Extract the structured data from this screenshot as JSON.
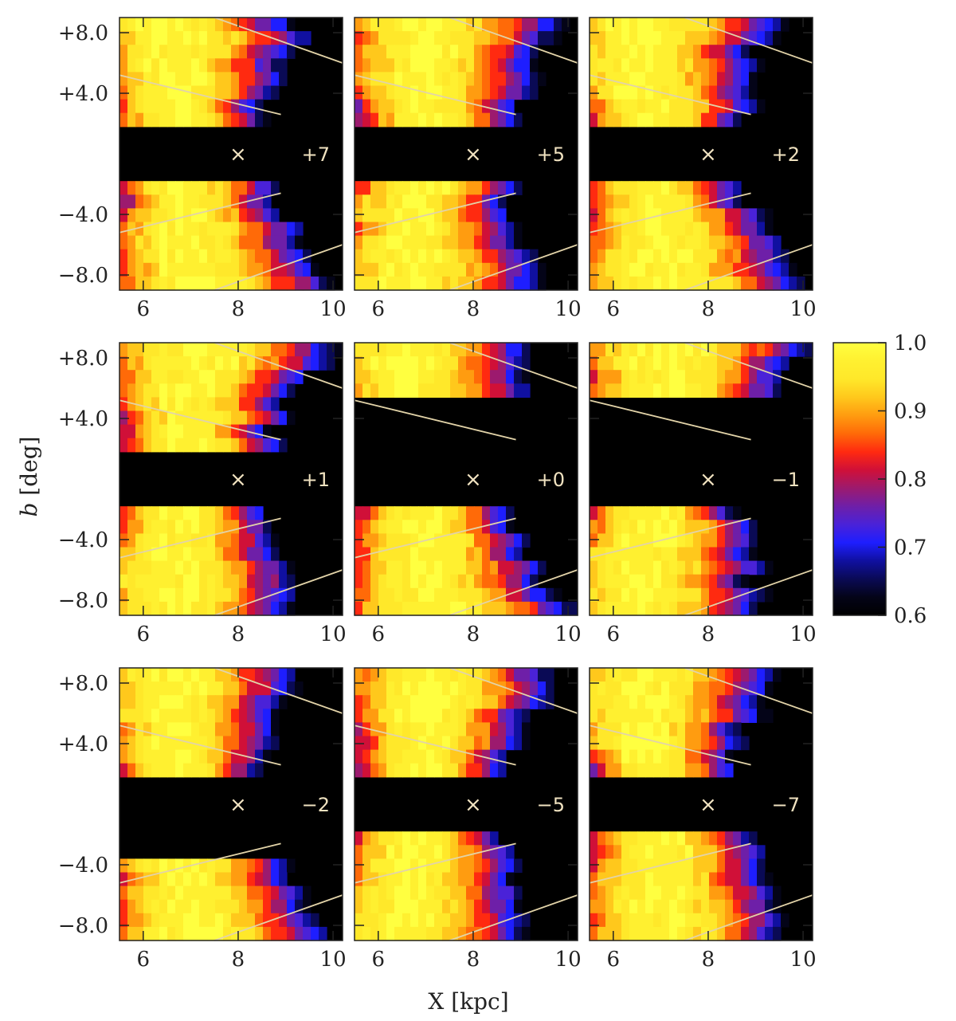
{
  "figure": {
    "xlabel": "X [kpc]",
    "ylabel_var": "b",
    "ylabel_unit": " [deg]"
  },
  "chart_data": {
    "type": "heatmap",
    "xlabel": "X [kpc]",
    "ylabel": "b [deg]",
    "xlim": [
      5.5,
      10.2
    ],
    "ylim": [
      -9,
      9
    ],
    "x_ticks": [
      6,
      8,
      10
    ],
    "x_tick_labels": [
      "6",
      "8",
      "10"
    ],
    "y_ticks": [
      8,
      4,
      -4,
      -8
    ],
    "y_tick_labels": [
      "+8.0",
      "+4.0",
      "−4.0",
      "−8.0"
    ],
    "marker": {
      "symbol": "×",
      "x": 8.0,
      "b": 0
    },
    "colorbar": {
      "min": 0.6,
      "max": 1.0,
      "ticks": [
        1.0,
        0.9,
        0.8,
        0.7,
        0.6
      ],
      "tick_labels": [
        "1.0",
        "0.9",
        "0.8",
        "0.7",
        "0.6"
      ]
    },
    "colormap": [
      "#000000",
      "#040418",
      "#0a0a55",
      "#1010a0",
      "#1e1eff",
      "#4a22d8",
      "#6e1fa8",
      "#9c1a6e",
      "#d01038",
      "#ff2a10",
      "#ff6a08",
      "#ff9c10",
      "#ffc81c",
      "#ffe82a",
      "#fff030",
      "#ffff40"
    ],
    "guide_line_color": "#e2d3a8",
    "panels": [
      {
        "label": "+7",
        "masked_b": [
          -2,
          2
        ]
      },
      {
        "label": "+5",
        "masked_b": [
          -2,
          2
        ]
      },
      {
        "label": "+2",
        "masked_b": [
          -2,
          2
        ]
      },
      {
        "label": "+1",
        "masked_b": [
          -2,
          2
        ]
      },
      {
        "label": "+0",
        "masked_b": [
          -2,
          5
        ]
      },
      {
        "label": "−1",
        "masked_b": [
          -2,
          5
        ]
      },
      {
        "label": "−2",
        "masked_b": [
          -4,
          2
        ]
      },
      {
        "label": "−5",
        "masked_b": [
          -2,
          2
        ]
      },
      {
        "label": "−7",
        "masked_b": [
          -2,
          2
        ]
      }
    ]
  }
}
